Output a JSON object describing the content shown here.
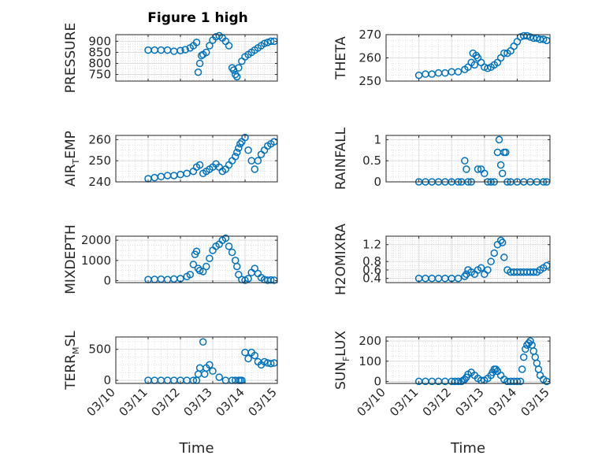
{
  "title": "Figure 1 high",
  "xlabel": "Time",
  "xtick_labels": [
    "03/10",
    "03/11",
    "03/12",
    "03/13",
    "03/14",
    "03/15"
  ],
  "marker_color": "#0072BD",
  "chart_data": [
    {
      "type": "scatter",
      "name": "PRESSURE",
      "ylabel_main": "PRESSURE",
      "ylabel_sub": "",
      "ylabel_rest": "",
      "xlim": [
        0,
        5
      ],
      "ylim": [
        720,
        930
      ],
      "yticks": [
        750,
        800,
        850,
        900
      ],
      "ytick_labels": [
        "750",
        "800",
        "850",
        "900"
      ],
      "x": [
        1.0,
        1.2,
        1.4,
        1.6,
        1.8,
        2.0,
        2.15,
        2.3,
        2.4,
        2.5,
        2.55,
        2.6,
        2.65,
        2.7,
        2.8,
        2.9,
        3.0,
        3.1,
        3.2,
        3.3,
        3.4,
        3.5,
        3.6,
        3.65,
        3.7,
        3.75,
        3.8,
        3.9,
        4.0,
        4.1,
        4.2,
        4.3,
        4.4,
        4.5,
        4.6,
        4.7,
        4.8,
        4.9
      ],
      "y": [
        860,
        860,
        860,
        860,
        855,
        858,
        862,
        870,
        880,
        895,
        760,
        800,
        835,
        840,
        850,
        880,
        905,
        920,
        925,
        915,
        900,
        880,
        780,
        770,
        750,
        740,
        780,
        810,
        830,
        840,
        850,
        860,
        870,
        880,
        890,
        895,
        900,
        900
      ]
    },
    {
      "type": "scatter",
      "name": "THETA",
      "ylabel_main": "THETA",
      "ylabel_sub": "",
      "ylabel_rest": "",
      "xlim": [
        0,
        5
      ],
      "ylim": [
        250,
        270
      ],
      "yticks": [
        250,
        260,
        270
      ],
      "ytick_labels": [
        "250",
        "260",
        "270"
      ],
      "x": [
        1.0,
        1.2,
        1.4,
        1.6,
        1.8,
        2.0,
        2.2,
        2.4,
        2.5,
        2.6,
        2.65,
        2.7,
        2.75,
        2.8,
        2.9,
        3.0,
        3.1,
        3.2,
        3.3,
        3.4,
        3.5,
        3.6,
        3.7,
        3.8,
        3.9,
        4.0,
        4.1,
        4.2,
        4.3,
        4.4,
        4.5,
        4.6,
        4.7,
        4.8,
        4.9
      ],
      "y": [
        252.5,
        253,
        253,
        253.5,
        253.5,
        254,
        254,
        255,
        256,
        258,
        262,
        257,
        261,
        260,
        258,
        256,
        255.5,
        256,
        257,
        258,
        260,
        262,
        262,
        263,
        265,
        267,
        269,
        269.5,
        269.5,
        269,
        268.5,
        268.5,
        268,
        268,
        267.5
      ]
    },
    {
      "type": "scatter",
      "name": "AIR_TEMP",
      "ylabel_main": "AIR",
      "ylabel_sub": "T",
      "ylabel_rest": "EMP",
      "xlim": [
        0,
        5
      ],
      "ylim": [
        240,
        262
      ],
      "yticks": [
        240,
        250,
        260
      ],
      "ytick_labels": [
        "240",
        "250",
        "260"
      ],
      "x": [
        1.0,
        1.2,
        1.4,
        1.6,
        1.8,
        2.0,
        2.2,
        2.4,
        2.5,
        2.6,
        2.7,
        2.8,
        2.9,
        3.0,
        3.1,
        3.2,
        3.3,
        3.4,
        3.5,
        3.6,
        3.7,
        3.75,
        3.8,
        3.85,
        3.9,
        4.0,
        4.1,
        4.2,
        4.3,
        4.4,
        4.5,
        4.6,
        4.7,
        4.8,
        4.9
      ],
      "y": [
        241.5,
        242,
        242.5,
        243,
        243,
        243.5,
        244,
        245,
        247,
        248,
        244,
        245,
        246,
        247,
        248.5,
        247,
        245,
        246,
        248,
        250,
        252,
        254,
        256,
        258,
        259,
        261,
        255,
        250,
        246,
        250,
        253,
        255,
        257,
        258,
        259
      ]
    },
    {
      "type": "scatter",
      "name": "RAINFALL",
      "ylabel_main": "RAINFALL",
      "ylabel_sub": "",
      "ylabel_rest": "",
      "xlim": [
        0,
        5
      ],
      "ylim": [
        0,
        1.1
      ],
      "yticks": [
        0,
        0.5,
        1
      ],
      "ytick_labels": [
        "0",
        "0.5",
        "1"
      ],
      "x": [
        1.0,
        1.2,
        1.4,
        1.6,
        1.8,
        2.0,
        2.2,
        2.3,
        2.4,
        2.45,
        2.5,
        2.6,
        2.8,
        2.9,
        3.0,
        3.1,
        3.2,
        3.3,
        3.4,
        3.45,
        3.5,
        3.55,
        3.6,
        3.65,
        3.7,
        3.8,
        4.0,
        4.2,
        4.4,
        4.6,
        4.8,
        4.9
      ],
      "y": [
        0,
        0,
        0,
        0,
        0,
        0,
        0,
        0,
        0.5,
        0.3,
        0,
        0,
        0.3,
        0.3,
        0.2,
        0,
        0,
        0,
        0.7,
        1.0,
        0.4,
        0.2,
        0.7,
        0.7,
        0,
        0,
        0,
        0,
        0,
        0,
        0,
        0
      ]
    },
    {
      "type": "scatter",
      "name": "MIXDEPTH",
      "ylabel_main": "MIXDEPTH",
      "ylabel_sub": "",
      "ylabel_rest": "",
      "xlim": [
        0,
        5
      ],
      "ylim": [
        -100,
        2200
      ],
      "yticks": [
        0,
        1000,
        2000
      ],
      "ytick_labels": [
        "0",
        "1000",
        "2000"
      ],
      "x": [
        1.0,
        1.2,
        1.4,
        1.6,
        1.8,
        2.0,
        2.2,
        2.3,
        2.4,
        2.45,
        2.5,
        2.55,
        2.6,
        2.7,
        2.8,
        2.9,
        3.0,
        3.1,
        3.2,
        3.3,
        3.4,
        3.5,
        3.6,
        3.7,
        3.75,
        3.8,
        3.9,
        4.0,
        4.1,
        4.2,
        4.3,
        4.4,
        4.5,
        4.6,
        4.7,
        4.8,
        4.9
      ],
      "y": [
        50,
        60,
        70,
        50,
        80,
        100,
        200,
        300,
        800,
        1300,
        1450,
        600,
        500,
        450,
        700,
        1100,
        1500,
        1700,
        1800,
        2000,
        2100,
        1700,
        1400,
        1000,
        700,
        300,
        50,
        20,
        100,
        400,
        600,
        350,
        150,
        50,
        20,
        30,
        20
      ]
    },
    {
      "type": "scatter",
      "name": "H2OMIXRA",
      "ylabel_main": "H2OMIXRA",
      "ylabel_sub": "",
      "ylabel_rest": "",
      "xlim": [
        0,
        5
      ],
      "ylim": [
        0.3,
        1.4
      ],
      "yticks": [
        0.4,
        0.6,
        0.8,
        1.2
      ],
      "ytick_labels": [
        "0.4",
        "0.6",
        "0.8",
        "1.2"
      ],
      "x": [
        1.0,
        1.2,
        1.4,
        1.6,
        1.8,
        2.0,
        2.2,
        2.4,
        2.45,
        2.5,
        2.6,
        2.7,
        2.8,
        2.9,
        3.0,
        3.1,
        3.2,
        3.3,
        3.4,
        3.5,
        3.55,
        3.6,
        3.7,
        3.8,
        3.9,
        4.0,
        4.1,
        4.2,
        4.3,
        4.4,
        4.5,
        4.6,
        4.7,
        4.8,
        4.9
      ],
      "y": [
        0.4,
        0.4,
        0.4,
        0.4,
        0.4,
        0.4,
        0.4,
        0.45,
        0.5,
        0.6,
        0.55,
        0.5,
        0.6,
        0.65,
        0.5,
        0.6,
        0.8,
        1.0,
        1.2,
        1.3,
        1.25,
        0.9,
        0.6,
        0.55,
        0.55,
        0.55,
        0.55,
        0.55,
        0.55,
        0.55,
        0.55,
        0.55,
        0.6,
        0.65,
        0.7
      ]
    },
    {
      "type": "scatter",
      "name": "TERR_MSL",
      "ylabel_main": "TERR",
      "ylabel_sub": "M",
      "ylabel_rest": "SL",
      "xlim": [
        0,
        5
      ],
      "ylim": [
        -50,
        700
      ],
      "yticks": [
        0,
        500
      ],
      "ytick_labels": [
        "0",
        "500"
      ],
      "x": [
        1.0,
        1.2,
        1.4,
        1.6,
        1.8,
        2.0,
        2.2,
        2.4,
        2.5,
        2.55,
        2.6,
        2.7,
        2.75,
        2.8,
        2.9,
        3.0,
        3.2,
        3.4,
        3.6,
        3.7,
        3.8,
        3.85,
        3.9,
        4.0,
        4.1,
        4.2,
        4.3,
        4.4,
        4.5,
        4.6,
        4.7,
        4.8,
        4.9
      ],
      "y": [
        0,
        0,
        0,
        0,
        0,
        0,
        0,
        0,
        0,
        100,
        200,
        620,
        100,
        200,
        250,
        150,
        50,
        0,
        0,
        0,
        0,
        0,
        0,
        450,
        350,
        450,
        400,
        300,
        250,
        300,
        280,
        270,
        280
      ]
    },
    {
      "type": "scatter",
      "name": "SUN_FLUX",
      "ylabel_main": "SUN",
      "ylabel_sub": "F",
      "ylabel_rest": "LUX",
      "xlim": [
        0,
        5
      ],
      "ylim": [
        -10,
        220
      ],
      "yticks": [
        0,
        100,
        200
      ],
      "ytick_labels": [
        "0",
        "100",
        "200"
      ],
      "x": [
        1.0,
        1.2,
        1.4,
        1.6,
        1.8,
        2.0,
        2.1,
        2.2,
        2.3,
        2.35,
        2.4,
        2.45,
        2.5,
        2.6,
        2.7,
        2.8,
        2.9,
        3.0,
        3.1,
        3.2,
        3.25,
        3.3,
        3.35,
        3.4,
        3.5,
        3.6,
        3.7,
        3.8,
        3.9,
        4.0,
        4.1,
        4.15,
        4.2,
        4.25,
        4.3,
        4.35,
        4.4,
        4.45,
        4.5,
        4.55,
        4.6,
        4.65,
        4.7,
        4.8,
        4.9
      ],
      "y": [
        0,
        0,
        0,
        0,
        0,
        0,
        0,
        0,
        0,
        5,
        10,
        20,
        35,
        45,
        30,
        15,
        5,
        5,
        15,
        30,
        45,
        60,
        60,
        50,
        30,
        10,
        0,
        0,
        0,
        0,
        0,
        60,
        120,
        160,
        180,
        190,
        200,
        180,
        150,
        120,
        90,
        60,
        30,
        10,
        0
      ]
    }
  ]
}
